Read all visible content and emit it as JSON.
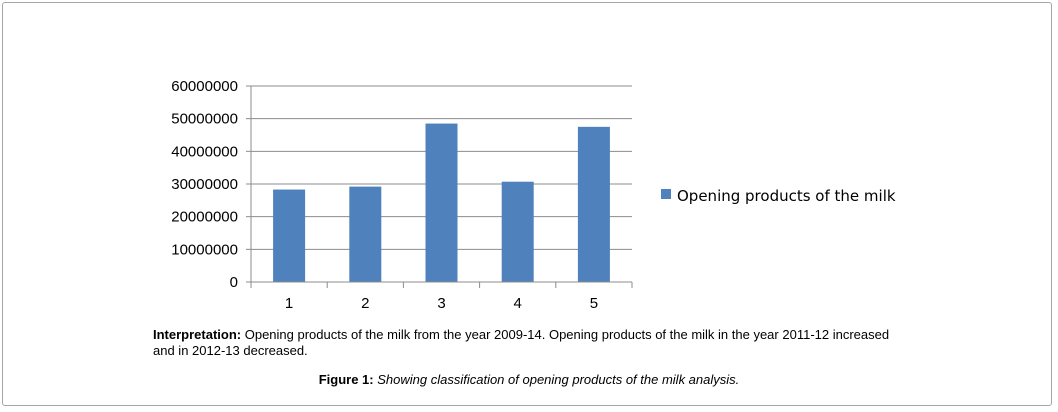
{
  "chart_data": {
    "type": "bar",
    "categories": [
      "1",
      "2",
      "3",
      "4",
      "5"
    ],
    "series": [
      {
        "name": "Opening products of the milk",
        "values": [
          28300000,
          29200000,
          48500000,
          30700000,
          47500000
        ],
        "color": "#4f81bd"
      }
    ],
    "yticks": [
      "0",
      "10000000",
      "20000000",
      "30000000",
      "40000000",
      "50000000",
      "60000000"
    ],
    "ylim": [
      0,
      60000000
    ],
    "grid": true,
    "legend": "right"
  },
  "interpretation": {
    "label": "Interpretation:",
    "text": " Opening products of the milk from the year 2009-14. Opening products of the milk in the year 2011-12 increased and in 2012-13 decreased."
  },
  "caption": {
    "label": "Figure 1:",
    "text": " Showing classification of opening products of the milk analysis."
  }
}
